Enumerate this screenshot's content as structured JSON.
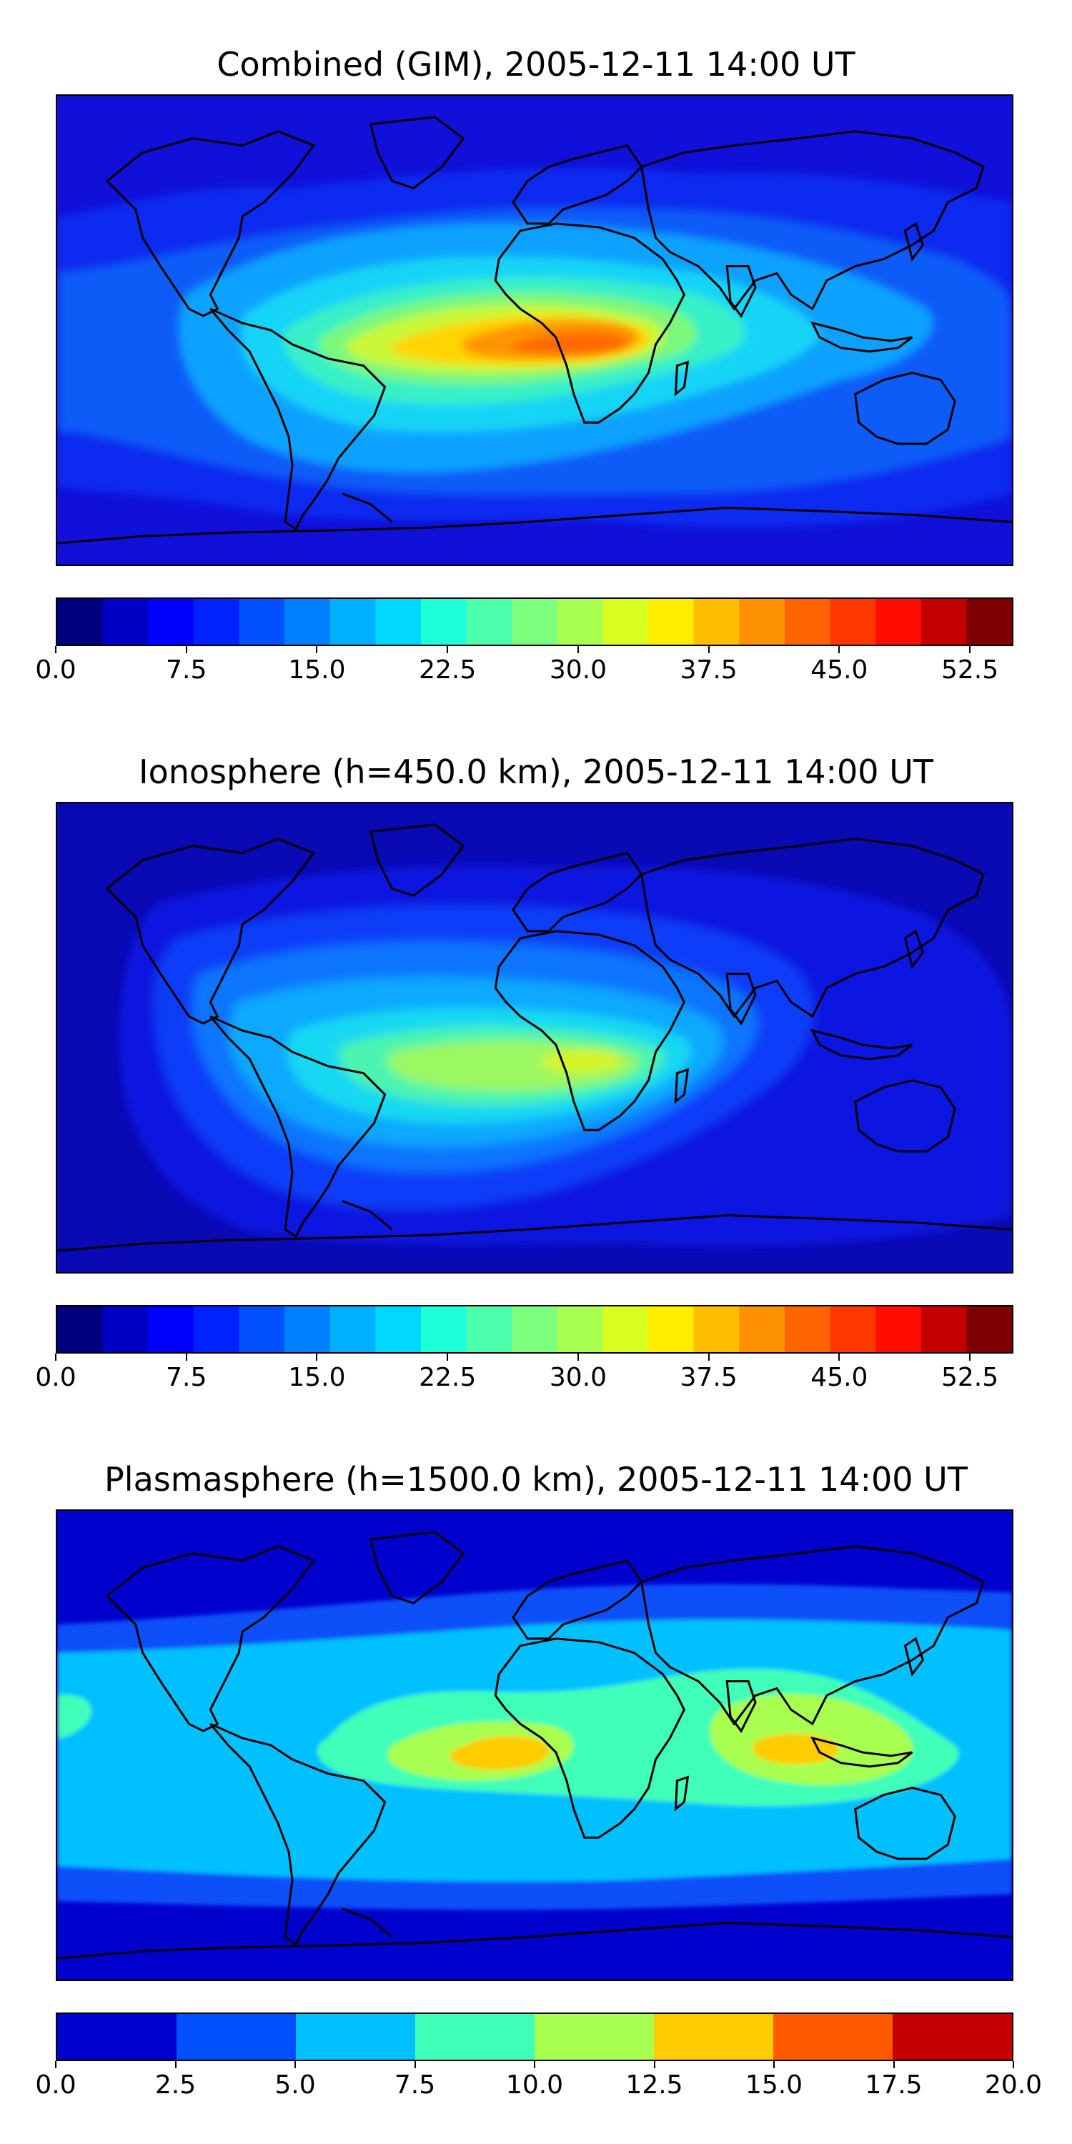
{
  "panels": [
    {
      "title": "Combined (GIM), 2005-12-11 14:00 UT",
      "colorbar": {
        "colors": [
          "#00007f",
          "#0000c4",
          "#0000ff",
          "#0022ff",
          "#0050ff",
          "#0080ff",
          "#00b0ff",
          "#00d8ff",
          "#1cffd8",
          "#4cffac",
          "#7cff7c",
          "#a8ff50",
          "#d8ff20",
          "#ffee00",
          "#ffbe00",
          "#ff9200",
          "#ff6400",
          "#ff3800",
          "#ff0e00",
          "#c40000",
          "#7f0000"
        ],
        "tick_values": [
          "0.0",
          "7.5",
          "15.0",
          "22.5",
          "30.0",
          "37.5",
          "45.0",
          "52.5"
        ],
        "tick_positions": [
          0.0,
          0.1364,
          0.2727,
          0.4091,
          0.5455,
          0.6818,
          0.8182,
          0.9545
        ]
      },
      "field": {
        "background": "#1010d8",
        "layers": [
          {
            "color": "#0a2af0"
          },
          {
            "color": "#0a5cf8"
          },
          {
            "color": "#08a2ff"
          },
          {
            "color": "#12d4f6"
          },
          {
            "color": "#38f0c8"
          },
          {
            "color": "#7cf87c"
          },
          {
            "color": "#c8f838"
          },
          {
            "color": "#ffd400"
          },
          {
            "color": "#ff9400"
          },
          {
            "color": "#ff6a00"
          }
        ]
      }
    },
    {
      "title": "Ionosphere  (h=450.0 km), 2005-12-11 14:00 UT",
      "colorbar": {
        "colors": [
          "#00007f",
          "#0000c4",
          "#0000ff",
          "#0022ff",
          "#0050ff",
          "#0080ff",
          "#00b0ff",
          "#00d8ff",
          "#1cffd8",
          "#4cffac",
          "#7cff7c",
          "#a8ff50",
          "#d8ff20",
          "#ffee00",
          "#ffbe00",
          "#ff9200",
          "#ff6400",
          "#ff3800",
          "#ff0e00",
          "#c40000",
          "#7f0000"
        ],
        "tick_values": [
          "0.0",
          "7.5",
          "15.0",
          "22.5",
          "30.0",
          "37.5",
          "45.0",
          "52.5"
        ],
        "tick_positions": [
          0.0,
          0.1364,
          0.2727,
          0.4091,
          0.5455,
          0.6818,
          0.8182,
          0.9545
        ]
      },
      "field": {
        "background": "#0a0ab4",
        "layers": [
          {
            "color": "#1014e0"
          },
          {
            "color": "#0a3cf8"
          },
          {
            "color": "#0a74ff"
          },
          {
            "color": "#08a8ff"
          },
          {
            "color": "#12d8f2"
          },
          {
            "color": "#4cf4b0"
          },
          {
            "color": "#9cf860"
          },
          {
            "color": "#d8f420"
          }
        ]
      }
    },
    {
      "title": "Plasmasphere (h=1500.0 km), 2005-12-11 14:00 UT",
      "colorbar": {
        "colors": [
          "#0000cd",
          "#0050ff",
          "#00c0ff",
          "#40ffb8",
          "#a8ff50",
          "#ffcc00",
          "#ff5a00",
          "#c40000"
        ],
        "tick_values": [
          "0.0",
          "2.5",
          "5.0",
          "7.5",
          "10.0",
          "12.5",
          "15.0",
          "17.5",
          "20.0"
        ],
        "tick_positions": [
          0.0,
          0.125,
          0.25,
          0.375,
          0.5,
          0.625,
          0.75,
          0.875,
          1.0
        ]
      },
      "field": {
        "background": "#0000cd",
        "layers": [
          {
            "color": "#0a50f8"
          },
          {
            "color": "#00c0ff"
          },
          {
            "color": "#40ffb8"
          },
          {
            "color": "#a8ff50"
          },
          {
            "color": "#ffcc00"
          }
        ]
      }
    }
  ]
}
